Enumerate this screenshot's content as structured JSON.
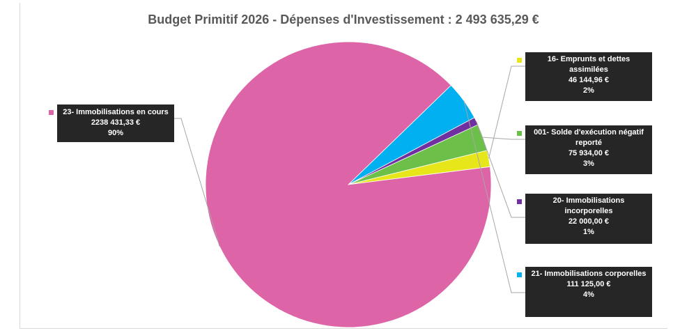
{
  "chart_data": {
    "type": "pie",
    "title": "Budget Primitif 2026 - Dépenses d'Investissement : 2 493 635,29 €",
    "slices": [
      {
        "name": "16- Emprunts et dettes assimilées",
        "value": 46144.96,
        "value_label": "46 144,96 €",
        "percent_label": "2%",
        "color": "#e6e61a"
      },
      {
        "name": "001- Solde d'exécution négatif reporté",
        "value": 75934.0,
        "value_label": "75 934,00 €",
        "percent_label": "3%",
        "color": "#6cc04a"
      },
      {
        "name": "20- Immobilisations incorporelles",
        "value": 22000.0,
        "value_label": "22 000,00 €",
        "percent_label": "1%",
        "color": "#7030a0"
      },
      {
        "name": "21- Immobilisations corporelles",
        "value": 111125.0,
        "value_label": "111 125,00 €",
        "percent_label": "4%",
        "color": "#00b0f0"
      },
      {
        "name": "23- Immobilisations en cours",
        "value": 2238431.33,
        "value_label": "2238 431,33 €",
        "percent_label": "90%",
        "color": "#de64a8"
      }
    ]
  }
}
